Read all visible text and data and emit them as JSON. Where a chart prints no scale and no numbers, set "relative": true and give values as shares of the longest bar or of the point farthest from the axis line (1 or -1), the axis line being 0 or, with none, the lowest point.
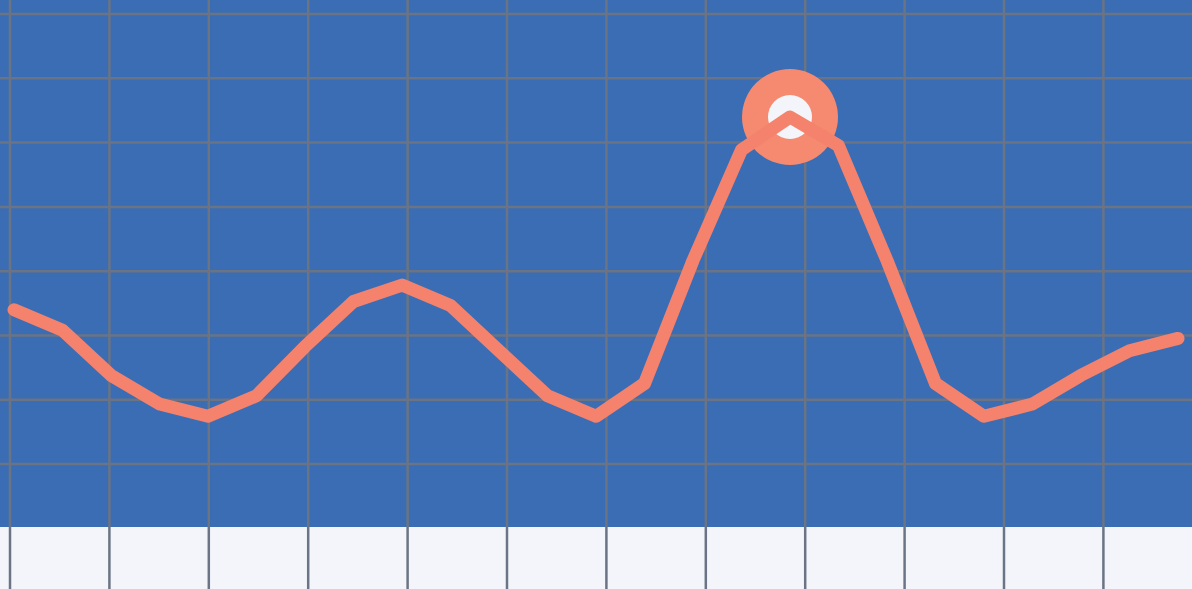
{
  "chart_data": {
    "type": "line",
    "relative": true,
    "grid": true,
    "categories": [
      null,
      null,
      null,
      null,
      null,
      null,
      null,
      null,
      null,
      null,
      null,
      null,
      null,
      null,
      null,
      null,
      null,
      null,
      null,
      null,
      null,
      null,
      null,
      null,
      null
    ],
    "series": [
      {
        "color": "#f4826c",
        "values": [
          0.53,
          0.48,
          0.37,
          0.3,
          0.27,
          0.32,
          0.44,
          0.55,
          0.59,
          0.54,
          0.43,
          0.32,
          0.27,
          0.35,
          0.65,
          0.92,
          1,
          0.93,
          0.65,
          0.35,
          0.27,
          0.3,
          0.37,
          0.43,
          0.46
        ]
      }
    ]
  }
}
